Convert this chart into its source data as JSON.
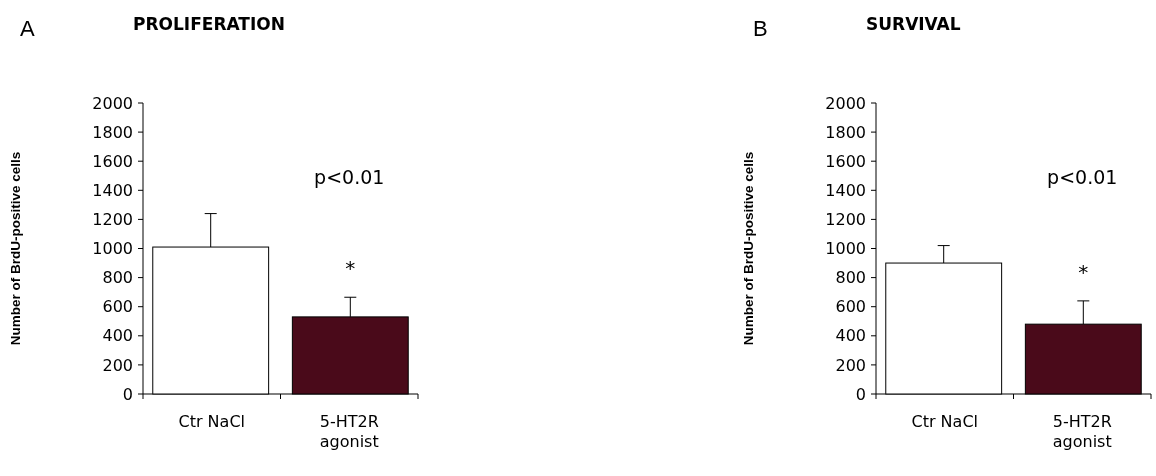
{
  "chart_data": [
    {
      "type": "bar",
      "title": "PROLIFERATION",
      "ylabel": "Number of BrdU-positive cells",
      "categories": [
        "Ctr NaCl",
        "5-HT2R agonist"
      ],
      "values": [
        1010,
        530
      ],
      "errors": [
        230,
        135
      ],
      "colors": [
        "#ffffff",
        "#4a0a1a"
      ],
      "ylim": [
        0,
        2000
      ],
      "yticks": [
        0,
        200,
        400,
        600,
        800,
        1000,
        1200,
        1400,
        1600,
        1800,
        2000
      ],
      "annotations": [
        "A",
        "p<0.01",
        "*"
      ]
    },
    {
      "type": "bar",
      "title": "SURVIVAL",
      "ylabel": "Number of BrdU-positive cells",
      "categories": [
        "Ctr NaCl",
        "5-HT2R agonist"
      ],
      "values": [
        900,
        480
      ],
      "errors": [
        120,
        160
      ],
      "colors": [
        "#ffffff",
        "#4a0a1a"
      ],
      "ylim": [
        0,
        2000
      ],
      "yticks": [
        0,
        200,
        400,
        600,
        800,
        1000,
        1200,
        1400,
        1600,
        1800,
        2000
      ],
      "annotations": [
        "B",
        "p<0.01",
        "*"
      ]
    }
  ]
}
